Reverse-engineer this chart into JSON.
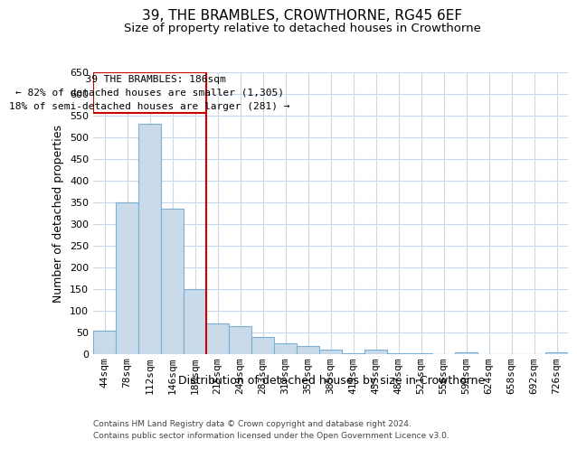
{
  "title": "39, THE BRAMBLES, CROWTHORNE, RG45 6EF",
  "subtitle": "Size of property relative to detached houses in Crowthorne",
  "xlabel": "Distribution of detached houses by size in Crowthorne",
  "ylabel": "Number of detached properties",
  "footnote1": "Contains HM Land Registry data © Crown copyright and database right 2024.",
  "footnote2": "Contains public sector information licensed under the Open Government Licence v3.0.",
  "annotation_line1": "  39 THE BRAMBLES: 186sqm",
  "annotation_line2": "← 82% of detached houses are smaller (1,305)",
  "annotation_line3": "18% of semi-detached houses are larger (281) →",
  "bar_color": "#c9daea",
  "bar_edgecolor": "#7bafd4",
  "vline_color": "#cc0000",
  "background_color": "#ffffff",
  "grid_color": "#c8d8e8",
  "categories": [
    "44sqm",
    "78sqm",
    "112sqm",
    "146sqm",
    "180sqm",
    "215sqm",
    "249sqm",
    "283sqm",
    "317sqm",
    "351sqm",
    "385sqm",
    "419sqm",
    "453sqm",
    "487sqm",
    "521sqm",
    "556sqm",
    "590sqm",
    "624sqm",
    "658sqm",
    "692sqm",
    "726sqm"
  ],
  "values": [
    55,
    350,
    530,
    335,
    150,
    70,
    65,
    40,
    25,
    18,
    10,
    2,
    10,
    2,
    2,
    0,
    5,
    0,
    0,
    0,
    5
  ],
  "ylim": [
    0,
    650
  ],
  "yticks": [
    0,
    50,
    100,
    150,
    200,
    250,
    300,
    350,
    400,
    450,
    500,
    550,
    600,
    650
  ],
  "vline_pos": 4.5,
  "title_fontsize": 11,
  "subtitle_fontsize": 9.5,
  "ylabel_fontsize": 9,
  "xlabel_fontsize": 9,
  "tick_fontsize": 8,
  "annot_fontsize": 8
}
